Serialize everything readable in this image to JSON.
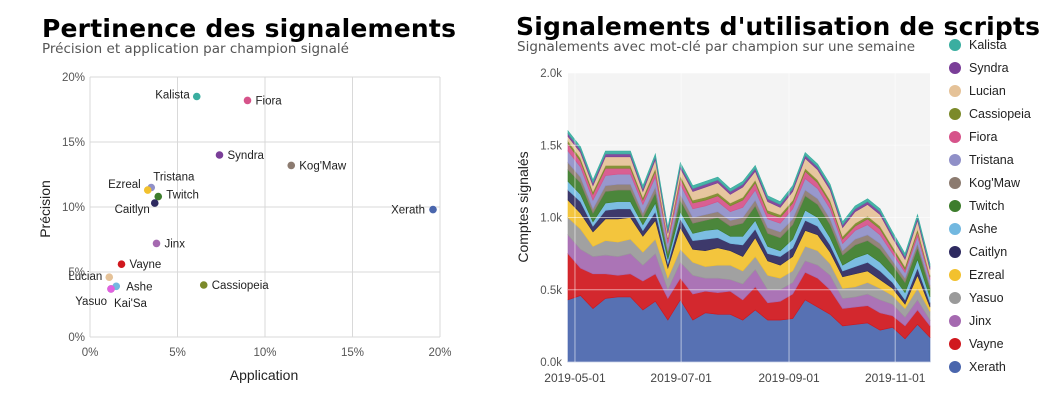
{
  "charts": [
    {
      "title": "Pertinence des signalements",
      "subtitle": "Précision et application par champion signalé"
    },
    {
      "title": "Signalements d'utilisation de scripts",
      "subtitle": "Signalements avec mot-clé par champion sur une semaine"
    }
  ],
  "chart_data": [
    {
      "type": "scatter",
      "title": "Pertinence des signalements",
      "subtitle": "Précision et application par champion signalé",
      "xlabel": "Application",
      "ylabel": "Précision",
      "xlim": [
        0,
        20
      ],
      "ylim": [
        0,
        20
      ],
      "xticks": [
        "0%",
        "5%",
        "10%",
        "15%",
        "20%"
      ],
      "yticks": [
        "0%",
        "5%",
        "10%",
        "15%",
        "20%"
      ],
      "grid": true,
      "points": [
        {
          "label": "Kalista",
          "x": 6.1,
          "y": 18.5,
          "color": "#3aaea0"
        },
        {
          "label": "Fiora",
          "x": 9.0,
          "y": 18.2,
          "color": "#d6538a"
        },
        {
          "label": "Syndra",
          "x": 7.4,
          "y": 14.0,
          "color": "#7a3e98"
        },
        {
          "label": "Kog'Maw",
          "x": 11.5,
          "y": 13.2,
          "color": "#8c7b70"
        },
        {
          "label": "Xerath",
          "x": 19.6,
          "y": 9.8,
          "color": "#4a66ad"
        },
        {
          "label": "Tristana",
          "x": 3.5,
          "y": 11.5,
          "color": "#9090c8"
        },
        {
          "label": "Ezreal",
          "x": 3.3,
          "y": 11.3,
          "color": "#f2c12e"
        },
        {
          "label": "Twitch",
          "x": 3.9,
          "y": 10.8,
          "color": "#3d7d2c"
        },
        {
          "label": "Caitlyn",
          "x": 3.7,
          "y": 10.3,
          "color": "#2e2a60"
        },
        {
          "label": "Jinx",
          "x": 3.8,
          "y": 7.2,
          "color": "#a569b0"
        },
        {
          "label": "Vayne",
          "x": 1.8,
          "y": 5.6,
          "color": "#d0181e"
        },
        {
          "label": "Cassiopeia",
          "x": 6.5,
          "y": 4.0,
          "color": "#7c8a2a"
        },
        {
          "label": "Lucian",
          "x": 1.1,
          "y": 4.6,
          "color": "#e5c298"
        },
        {
          "label": "Ashe",
          "x": 1.5,
          "y": 3.9,
          "color": "#72b8e0"
        },
        {
          "label": "Yasuo",
          "x": 1.2,
          "y": 3.7,
          "color": "#9a9a9a"
        },
        {
          "label": "Kai'Sa",
          "x": 1.2,
          "y": 3.7,
          "color": "#e060e0"
        }
      ]
    },
    {
      "type": "area",
      "stacked": true,
      "title": "Signalements d'utilisation de scripts",
      "subtitle": "Signalements avec mot-clé par champion sur une semaine",
      "xlabel": "",
      "ylabel": "Comptes signalés",
      "ylim": [
        0,
        2000
      ],
      "yticks": [
        "0.0k",
        "0.5k",
        "1.0k",
        "1.5k",
        "2.0k"
      ],
      "xticks": [
        "2019-05-01",
        "2019-07-01",
        "2019-09-01",
        "2019-11-01"
      ],
      "x_start": "2019-04-27",
      "x_end": "2019-11-21",
      "legend_position": "right",
      "grid": true,
      "series": [
        {
          "name": "Xerath",
          "color": "#4a66ad",
          "values": [
            430,
            460,
            370,
            440,
            450,
            450,
            360,
            420,
            290,
            430,
            290,
            340,
            330,
            330,
            290,
            360,
            290,
            290,
            300,
            430,
            380,
            330,
            250,
            260,
            270,
            220,
            240,
            160,
            260,
            170
          ]
        },
        {
          "name": "Vayne",
          "color": "#d0181e",
          "values": [
            320,
            190,
            240,
            170,
            150,
            160,
            200,
            190,
            150,
            150,
            180,
            150,
            150,
            160,
            140,
            160,
            120,
            130,
            170,
            190,
            200,
            170,
            120,
            120,
            120,
            120,
            80,
            90,
            100,
            80
          ]
        },
        {
          "name": "Jinx",
          "color": "#a569b0",
          "values": [
            130,
            130,
            120,
            130,
            130,
            140,
            110,
            140,
            60,
            110,
            130,
            90,
            100,
            80,
            110,
            120,
            90,
            80,
            80,
            80,
            90,
            100,
            70,
            70,
            80,
            90,
            80,
            60,
            70,
            40
          ]
        },
        {
          "name": "Yasuo",
          "color": "#9a9a9a",
          "values": [
            120,
            140,
            70,
            100,
            100,
            100,
            90,
            100,
            80,
            90,
            90,
            80,
            90,
            100,
            90,
            90,
            100,
            80,
            80,
            100,
            100,
            80,
            70,
            70,
            80,
            80,
            60,
            60,
            80,
            60
          ]
        },
        {
          "name": "Ezreal",
          "color": "#f2c12e",
          "values": [
            120,
            110,
            100,
            150,
            160,
            150,
            110,
            130,
            70,
            150,
            90,
            110,
            120,
            100,
            100,
            130,
            100,
            90,
            100,
            110,
            110,
            80,
            80,
            90,
            80,
            60,
            50,
            30,
            90,
            30
          ]
        },
        {
          "name": "Caitlyn",
          "color": "#2e2a60",
          "values": [
            70,
            80,
            40,
            60,
            70,
            60,
            40,
            60,
            30,
            60,
            60,
            80,
            70,
            50,
            80,
            60,
            50,
            60,
            60,
            70,
            60,
            50,
            40,
            50,
            60,
            60,
            40,
            30,
            50,
            30
          ]
        },
        {
          "name": "Ashe",
          "color": "#72b8e0",
          "values": [
            60,
            50,
            30,
            50,
            50,
            50,
            40,
            60,
            30,
            50,
            50,
            60,
            60,
            50,
            60,
            60,
            50,
            40,
            60,
            70,
            60,
            50,
            40,
            60,
            60,
            60,
            50,
            50,
            60,
            40
          ]
        },
        {
          "name": "Twitch",
          "color": "#3d7d2c",
          "values": [
            80,
            80,
            60,
            80,
            80,
            80,
            50,
            70,
            40,
            80,
            70,
            70,
            80,
            70,
            90,
            100,
            90,
            90,
            100,
            100,
            90,
            90,
            70,
            90,
            90,
            90,
            70,
            70,
            80,
            60
          ]
        },
        {
          "name": "Kog'Maw",
          "color": "#8c7b70",
          "values": [
            50,
            40,
            30,
            40,
            40,
            40,
            30,
            40,
            20,
            40,
            40,
            40,
            40,
            40,
            40,
            40,
            40,
            40,
            40,
            40,
            40,
            40,
            30,
            40,
            40,
            40,
            30,
            30,
            30,
            20
          ]
        },
        {
          "name": "Tristana",
          "color": "#9090c8",
          "values": [
            80,
            70,
            60,
            70,
            70,
            70,
            60,
            70,
            50,
            70,
            60,
            60,
            70,
            60,
            70,
            70,
            60,
            60,
            70,
            80,
            70,
            70,
            50,
            60,
            70,
            60,
            50,
            40,
            50,
            40
          ]
        },
        {
          "name": "Fiora",
          "color": "#d6538a",
          "values": [
            50,
            40,
            40,
            50,
            40,
            40,
            30,
            40,
            30,
            40,
            40,
            40,
            40,
            40,
            50,
            50,
            40,
            40,
            40,
            50,
            40,
            40,
            30,
            30,
            40,
            40,
            30,
            20,
            30,
            20
          ]
        },
        {
          "name": "Cassiopeia",
          "color": "#7c8a2a",
          "values": [
            20,
            20,
            20,
            20,
            20,
            20,
            20,
            20,
            10,
            20,
            20,
            20,
            20,
            20,
            20,
            20,
            20,
            20,
            20,
            20,
            20,
            20,
            20,
            20,
            20,
            20,
            20,
            20,
            20,
            10
          ]
        },
        {
          "name": "Lucian",
          "color": "#e5c298",
          "values": [
            30,
            40,
            40,
            60,
            60,
            60,
            40,
            60,
            30,
            50,
            60,
            70,
            70,
            60,
            70,
            60,
            60,
            50,
            60,
            70,
            70,
            70,
            60,
            80,
            80,
            80,
            60,
            50,
            60,
            40
          ]
        },
        {
          "name": "Syndra",
          "color": "#7a3e98",
          "values": [
            20,
            20,
            20,
            20,
            20,
            20,
            20,
            20,
            20,
            20,
            20,
            20,
            20,
            20,
            20,
            20,
            20,
            20,
            20,
            20,
            20,
            20,
            20,
            20,
            20,
            20,
            20,
            20,
            20,
            20
          ]
        },
        {
          "name": "Kalista",
          "color": "#3aaea0",
          "values": [
            20,
            20,
            20,
            20,
            20,
            20,
            20,
            20,
            20,
            20,
            20,
            20,
            20,
            20,
            20,
            20,
            20,
            20,
            20,
            20,
            20,
            20,
            20,
            20,
            20,
            20,
            20,
            20,
            20,
            20
          ]
        }
      ]
    }
  ]
}
